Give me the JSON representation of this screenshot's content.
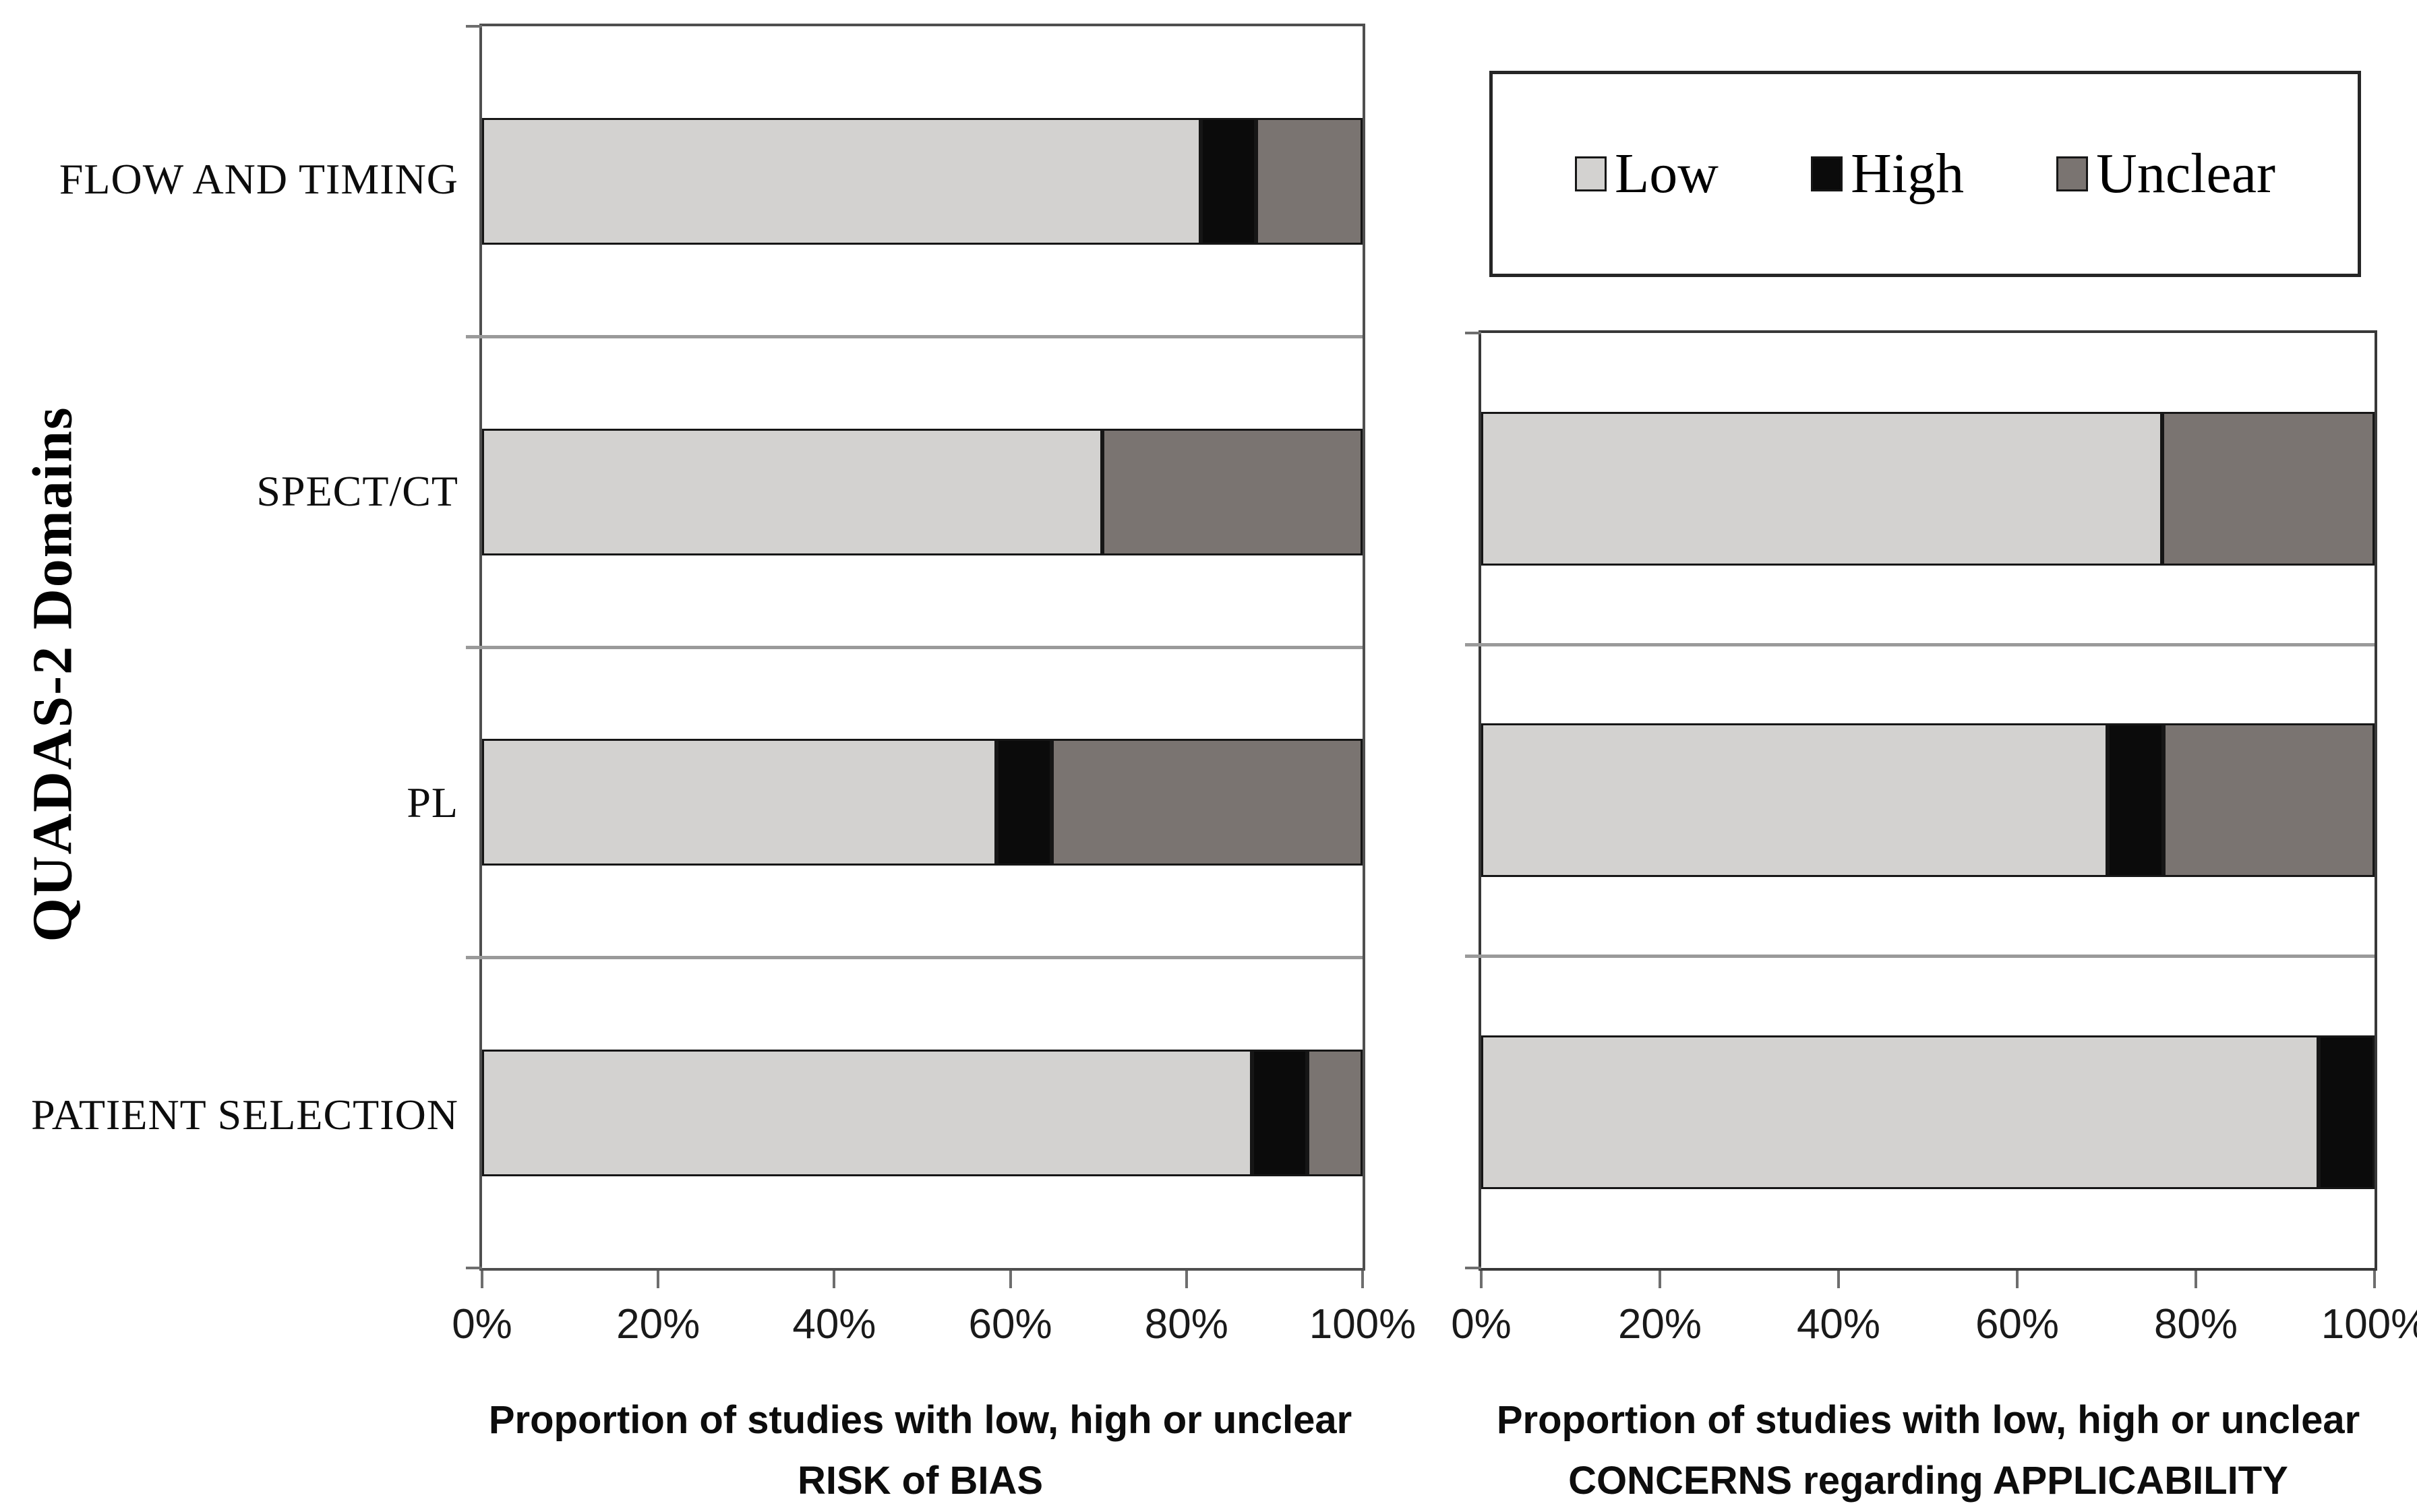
{
  "figure": {
    "y_axis_title": "QUADAS-2 Domains",
    "x_ticks": [
      "0%",
      "20%",
      "40%",
      "60%",
      "80%",
      "100%"
    ],
    "legend": [
      {
        "label": "Low",
        "color": "#d3d2d0"
      },
      {
        "label": "High",
        "color": "#0b0b0b"
      },
      {
        "label": "Unclear",
        "color": "#7a7471"
      }
    ],
    "left_axis_title": {
      "line1": "Proportion of studies with low, high or unclear",
      "line2": "RISK of BIAS"
    },
    "right_axis_title": {
      "line1": "Proportion of studies with low, high or unclear",
      "line2": "CONCERNS regarding APPLICABILITY"
    }
  },
  "chart_data": [
    {
      "type": "bar",
      "orientation": "horizontal",
      "stacked": true,
      "title": "",
      "xlabel": "Proportion of studies with low, high or unclear RISK of BIAS",
      "ylabel": "QUADAS-2 Domains",
      "xlim": [
        0,
        100
      ],
      "xticks": [
        "0%",
        "20%",
        "40%",
        "60%",
        "80%",
        "100%"
      ],
      "grid": false,
      "legend_position": "top-right-box",
      "categories": [
        "FLOW AND TIMING",
        "SPECT/CT",
        "PL",
        "PATIENT SELECTION"
      ],
      "series": [
        {
          "name": "Low",
          "color": "#d3d2d0",
          "values": [
            82.4,
            70.6,
            58.8,
            88.2
          ]
        },
        {
          "name": "High",
          "color": "#0b0b0b",
          "values": [
            5.9,
            0,
            5.9,
            5.9
          ]
        },
        {
          "name": "Unclear",
          "color": "#7a7471",
          "values": [
            11.8,
            29.4,
            35.3,
            5.9
          ]
        }
      ]
    },
    {
      "type": "bar",
      "orientation": "horizontal",
      "stacked": true,
      "title": "",
      "xlabel": "Proportion of studies with low, high or unclear CONCERNS regarding APPLICABILITY",
      "ylabel": "",
      "xlim": [
        0,
        100
      ],
      "xticks": [
        "0%",
        "20%",
        "40%",
        "60%",
        "80%",
        "100%"
      ],
      "grid": false,
      "categories": [
        "SPECT/CT",
        "PL",
        "PATIENT SELECTION"
      ],
      "series": [
        {
          "name": "Low",
          "color": "#d3d2d0",
          "values": [
            76.5,
            70.6,
            94.1
          ]
        },
        {
          "name": "High",
          "color": "#0b0b0b",
          "values": [
            0,
            5.9,
            5.9
          ]
        },
        {
          "name": "Unclear",
          "color": "#7a7471",
          "values": [
            23.5,
            23.5,
            0
          ]
        }
      ]
    }
  ]
}
